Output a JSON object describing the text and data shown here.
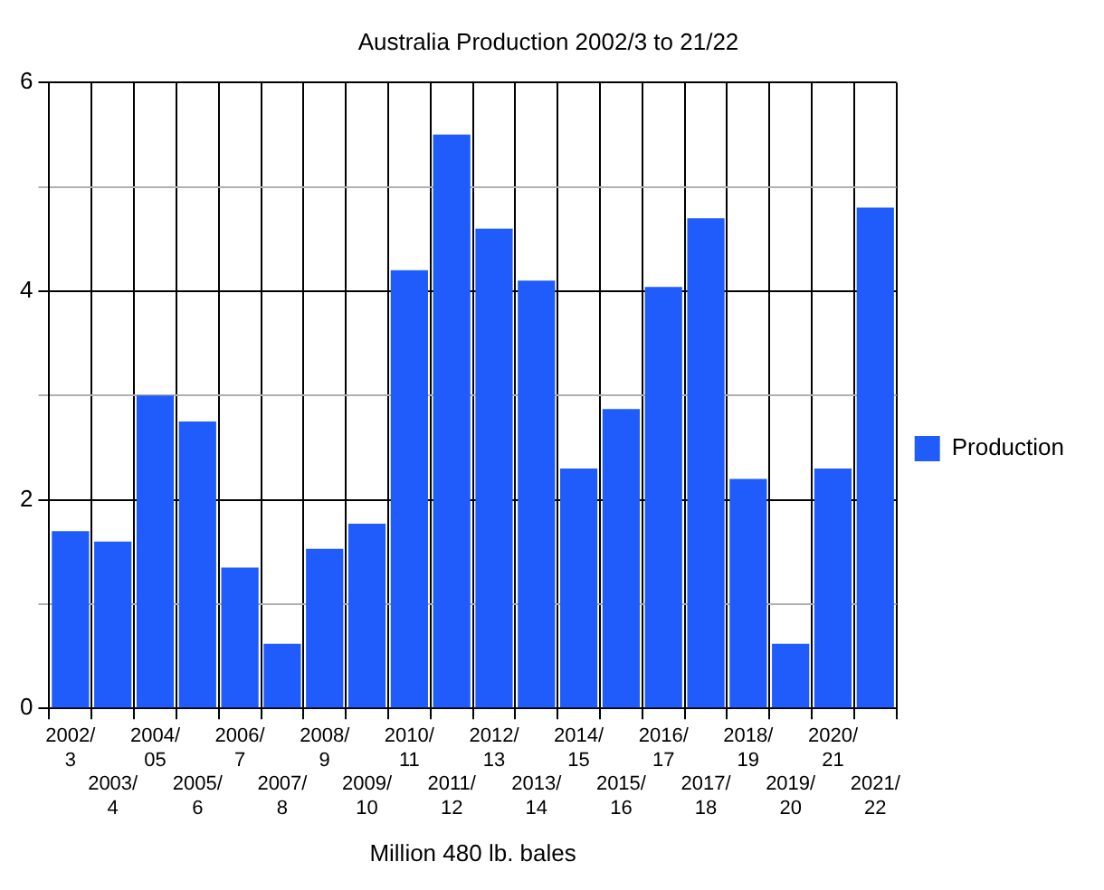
{
  "chart_data": {
    "type": "bar",
    "title": "Australia Production 2002/3 to 21/22",
    "xlabel": "Million 480 lb. bales",
    "categories": [
      "2002/3",
      "2003/4",
      "2004/05",
      "2005/6",
      "2006/7",
      "2007/8",
      "2008/9",
      "2009/10",
      "2010/11",
      "2011/12",
      "2012/13",
      "2013/14",
      "2014/15",
      "2015/16",
      "2016/17",
      "2017/18",
      "2018/19",
      "2019/20",
      "2020/21",
      "2021/22"
    ],
    "series": [
      {
        "name": "Production",
        "color": "#1f5cfb",
        "values": [
          1.7,
          1.6,
          3.0,
          2.75,
          1.35,
          0.62,
          1.53,
          1.77,
          4.2,
          5.5,
          4.6,
          4.1,
          2.3,
          2.87,
          4.04,
          4.7,
          2.2,
          0.62,
          2.3,
          4.8
        ]
      }
    ],
    "ylim": [
      0,
      6
    ],
    "yticks": [
      0,
      {
        "value": 1,
        "label": null
      },
      2,
      {
        "value": 3,
        "label": null
      },
      4,
      {
        "value": 5,
        "label": null
      },
      6
    ],
    "grid": true,
    "legend": "right"
  }
}
